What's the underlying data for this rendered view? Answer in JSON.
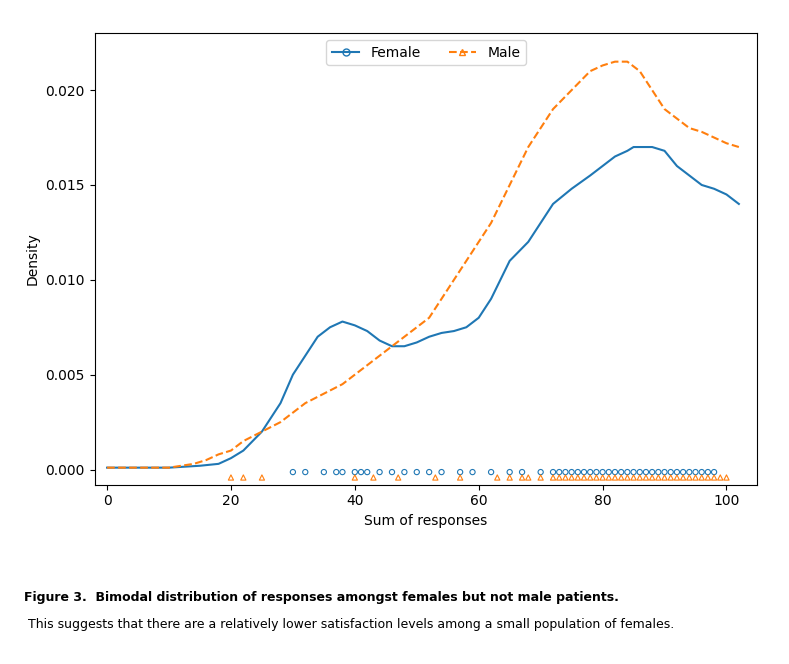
{
  "chart_data": {
    "type": "line",
    "xlabel": "Sum of responses",
    "ylabel": "Density",
    "xlim": [
      -2,
      105
    ],
    "ylim": [
      -0.0008,
      0.023
    ],
    "xticks": [
      0,
      20,
      40,
      60,
      80,
      100
    ],
    "yticks": [
      {
        "value": 0.0,
        "label": "0.000"
      },
      {
        "value": 0.005,
        "label": "0.005"
      },
      {
        "value": 0.01,
        "label": "0.010"
      },
      {
        "value": 0.015,
        "label": "0.015"
      },
      {
        "value": 0.02,
        "label": "0.020"
      }
    ],
    "legend": "upper center",
    "annotations": [
      {
        "text": "Figure 3.  Bimodal distribution of responses amongst females but not male patients."
      },
      {
        "text": " This suggests that there are a relatively lower satisfaction levels among a small population of females."
      }
    ],
    "series": [
      {
        "name": "Female",
        "line_style": "solid",
        "marker": "o",
        "x": [
          0,
          5,
          10,
          15,
          18,
          20,
          22,
          25,
          28,
          30,
          32,
          34,
          36,
          38,
          40,
          42,
          44,
          46,
          48,
          50,
          52,
          54,
          56,
          58,
          60,
          62,
          65,
          68,
          70,
          72,
          75,
          78,
          80,
          82,
          84,
          85,
          86,
          87,
          88,
          89,
          90,
          92,
          94,
          96,
          98,
          100,
          102
        ],
        "values": [
          0.0001,
          0.0001,
          0.0001,
          0.0002,
          0.0003,
          0.0006,
          0.001,
          0.002,
          0.0035,
          0.005,
          0.006,
          0.007,
          0.0075,
          0.0078,
          0.0076,
          0.0073,
          0.0068,
          0.0065,
          0.0065,
          0.0067,
          0.007,
          0.0072,
          0.0073,
          0.0075,
          0.008,
          0.009,
          0.011,
          0.012,
          0.013,
          0.014,
          0.0148,
          0.0155,
          0.016,
          0.0165,
          0.0168,
          0.017,
          0.017,
          0.017,
          0.017,
          0.0169,
          0.0168,
          0.016,
          0.0155,
          0.015,
          0.0148,
          0.0145,
          0.014
        ],
        "rug": [
          30,
          32,
          35,
          37,
          38,
          40,
          41,
          42,
          44,
          46,
          48,
          50,
          52,
          54,
          57,
          59,
          62,
          65,
          67,
          70,
          72,
          73,
          74,
          75,
          76,
          77,
          78,
          79,
          80,
          81,
          82,
          83,
          84,
          85,
          86,
          87,
          88,
          89,
          90,
          91,
          92,
          93,
          94,
          95,
          96,
          97,
          98
        ]
      },
      {
        "name": "Male",
        "line_style": "dashed",
        "marker": "^",
        "x": [
          0,
          5,
          8,
          10,
          12,
          14,
          16,
          18,
          20,
          22,
          25,
          28,
          30,
          32,
          35,
          38,
          40,
          42,
          44,
          46,
          48,
          50,
          52,
          54,
          56,
          58,
          60,
          62,
          65,
          68,
          70,
          72,
          75,
          78,
          80,
          82,
          84,
          86,
          88,
          90,
          92,
          94,
          96,
          98,
          100,
          102
        ],
        "values": [
          0.0001,
          0.0001,
          0.0001,
          0.0001,
          0.0002,
          0.0003,
          0.0005,
          0.0008,
          0.001,
          0.0015,
          0.002,
          0.0025,
          0.003,
          0.0035,
          0.004,
          0.0045,
          0.005,
          0.0055,
          0.006,
          0.0065,
          0.007,
          0.0075,
          0.008,
          0.009,
          0.01,
          0.011,
          0.012,
          0.013,
          0.015,
          0.017,
          0.018,
          0.019,
          0.02,
          0.021,
          0.0213,
          0.0215,
          0.0215,
          0.021,
          0.02,
          0.019,
          0.0185,
          0.018,
          0.0178,
          0.0175,
          0.0172,
          0.017
        ],
        "rug": [
          20,
          22,
          25,
          40,
          43,
          47,
          53,
          57,
          63,
          65,
          67,
          68,
          70,
          72,
          73,
          74,
          75,
          76,
          77,
          78,
          79,
          80,
          81,
          82,
          83,
          84,
          85,
          86,
          87,
          88,
          89,
          90,
          91,
          92,
          93,
          94,
          95,
          96,
          97,
          98,
          99,
          100
        ]
      }
    ]
  }
}
